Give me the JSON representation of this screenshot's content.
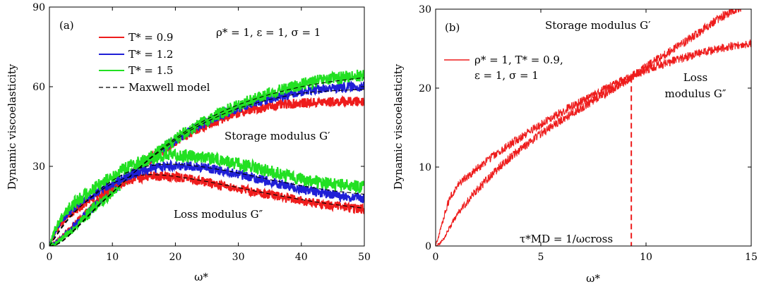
{
  "chart_data": [
    {
      "type": "line",
      "panel_label": "(a)",
      "xlabel": "ω*",
      "ylabel": "Dynamic viscoelasticity",
      "xlim": [
        0,
        50
      ],
      "ylim": [
        0,
        90
      ],
      "xticks": [
        0,
        10,
        20,
        30,
        40,
        50
      ],
      "yticks": [
        0,
        30,
        60,
        90
      ],
      "params_text": "ρ* = 1, ε = 1, σ = 1",
      "annotations": [
        "Storage modulus G′",
        "Loss modulus G″"
      ],
      "legend": {
        "position": "top-left",
        "entries": [
          {
            "label": "T* = 0.9",
            "color": "#ee1c1c",
            "style": "solid"
          },
          {
            "label": "T* = 1.2",
            "color": "#1f1fd6",
            "style": "solid"
          },
          {
            "label": "T* = 1.5",
            "color": "#22e022",
            "style": "solid"
          },
          {
            "label": "Maxwell model",
            "color": "#000000",
            "style": "dashed"
          }
        ]
      },
      "x": [
        0,
        1,
        2,
        3,
        4,
        5,
        6,
        8,
        10,
        12,
        14,
        16,
        18,
        20,
        22,
        25,
        28,
        30,
        32,
        35,
        38,
        40,
        42,
        45,
        48,
        50
      ],
      "series": [
        {
          "name": "T* = 0.9",
          "modulus": "storage",
          "color": "#ee1c1c",
          "noise": 0.6,
          "values": [
            0,
            1.3,
            3.5,
            5.8,
            8.4,
            10.5,
            12.8,
            17,
            21,
            25.2,
            29,
            32.8,
            36,
            39.2,
            41.9,
            45.5,
            48.5,
            50.1,
            51.3,
            52.6,
            53.5,
            53.8,
            54,
            54.3,
            54.4,
            54.5
          ]
        },
        {
          "name": "T* = 1.2",
          "modulus": "storage",
          "color": "#1f1fd6",
          "noise": 0.6,
          "values": [
            0,
            1,
            3,
            5.3,
            7.8,
            10,
            12.4,
            16.8,
            20.8,
            25,
            29,
            33,
            36.5,
            39.8,
            42.9,
            46.7,
            50,
            51.9,
            53.5,
            55.5,
            57.2,
            58.2,
            58.8,
            59.5,
            59.9,
            60.2
          ]
        },
        {
          "name": "T* = 1.5",
          "modulus": "storage",
          "color": "#22e022",
          "noise": 0.8,
          "values": [
            0,
            0.9,
            2.6,
            4.7,
            7.1,
            9.4,
            11.8,
            16.4,
            20.6,
            24.9,
            29.1,
            33.2,
            36.8,
            40.2,
            43.4,
            47.4,
            50.9,
            53.1,
            54.9,
            57.3,
            59.5,
            60.8,
            61.9,
            63,
            63.9,
            64.3
          ]
        },
        {
          "name": "T* = 0.9",
          "modulus": "loss",
          "color": "#ee1c1c",
          "noise": 0.6,
          "values": [
            0,
            5.5,
            9,
            11.2,
            13.2,
            15,
            16.6,
            19.6,
            22.2,
            24.3,
            25.6,
            26.2,
            26.3,
            26,
            25.4,
            24,
            22.6,
            21.6,
            20.6,
            19.3,
            17.9,
            17,
            16.2,
            15.3,
            14.4,
            13.8
          ]
        },
        {
          "name": "T* = 1.2",
          "modulus": "loss",
          "color": "#1f1fd6",
          "noise": 0.6,
          "values": [
            0,
            6,
            10,
            12.5,
            14.6,
            16.4,
            18,
            21,
            23.6,
            26,
            27.9,
            29.2,
            30,
            30.3,
            30.2,
            29.4,
            28.1,
            27,
            25.9,
            24.3,
            22.6,
            21.4,
            20.5,
            19.3,
            18.3,
            17.6
          ]
        },
        {
          "name": "T* = 1.5",
          "modulus": "loss",
          "color": "#22e022",
          "noise": 0.8,
          "values": [
            0,
            6.8,
            11.2,
            14,
            16.3,
            18.3,
            20,
            23.4,
            26.4,
            29.2,
            31.5,
            33,
            33.9,
            34.2,
            34,
            33.2,
            31.9,
            30.9,
            29.8,
            28.1,
            26.3,
            25.1,
            24.3,
            23.3,
            22.6,
            22.1
          ]
        }
      ],
      "maxwell_model": [
        {
          "modulus": "storage",
          "values": [
            0,
            0.4,
            1.8,
            3.9,
            6.3,
            8.6,
            11.1,
            15.9,
            20.2,
            24.6,
            28.8,
            32.9,
            36.5,
            39.9,
            43.1,
            46.9,
            50.1,
            51.9,
            53.3,
            55.2,
            56.7,
            57.5,
            58,
            58.5,
            58.8,
            59
          ]
        },
        {
          "modulus": "storage",
          "values": [
            0,
            0.3,
            1.6,
            3.6,
            6,
            8.3,
            10.8,
            15.6,
            20,
            24.5,
            28.9,
            33.2,
            37,
            40.5,
            43.8,
            47.8,
            51.2,
            53.2,
            54.9,
            57.1,
            58.9,
            60,
            60.9,
            62,
            62.9,
            63.4
          ]
        },
        {
          "modulus": "loss",
          "values": [
            0,
            3.8,
            7.4,
            10.4,
            12.9,
            15,
            17,
            20.8,
            23.6,
            25.6,
            26.6,
            26.9,
            26.7,
            26.2,
            25.5,
            24.3,
            22.9,
            22,
            21,
            19.6,
            18.3,
            17.5,
            16.7,
            15.7,
            14.8,
            14.2
          ]
        },
        {
          "modulus": "loss",
          "values": [
            0,
            3.4,
            6.9,
            10,
            12.7,
            15,
            17.2,
            21.4,
            24.7,
            27.4,
            29.2,
            30.3,
            30.7,
            30.8,
            30.5,
            29.6,
            28.4,
            27.5,
            26.5,
            25,
            23.6,
            22.7,
            21.9,
            20.8,
            20,
            19.5
          ]
        }
      ]
    },
    {
      "type": "line",
      "panel_label": "(b)",
      "xlabel": "ω*",
      "ylabel": "Dynamic viscoelasticity",
      "xlim": [
        0,
        15
      ],
      "ylim": [
        0,
        30
      ],
      "xticks": [
        0,
        5,
        10,
        15
      ],
      "yticks": [
        0,
        10,
        20,
        30
      ],
      "annotations": [
        "Storage modulus G′",
        "Loss modulus G″",
        "τ*MD = 1/ωcross"
      ],
      "legend": {
        "position": "top-left",
        "entries": [
          {
            "label_line1": "ρ* = 1, T* = 0.9,",
            "label_line2": "ε = 1, σ = 1",
            "color": "#ee1c1c",
            "style": "solid"
          }
        ]
      },
      "crossover_x": 9.3,
      "x": [
        0,
        0.2,
        0.4,
        0.6,
        0.8,
        1,
        1.5,
        2,
        2.5,
        3,
        3.5,
        4,
        4.5,
        5,
        5.5,
        6,
        6.5,
        7,
        7.5,
        8,
        8.5,
        9,
        9.3,
        9.5,
        10,
        10.5,
        11,
        11.5,
        12,
        12.5,
        13,
        13.5,
        14,
        14.5,
        15
      ],
      "series": [
        {
          "name": "Storage modulus G′",
          "color": "#ee1c1c",
          "noise": 0.55,
          "values": [
            0,
            0.3,
            1,
            2,
            3,
            3.9,
            5.6,
            7.2,
            8.6,
            9.9,
            11.1,
            12.2,
            13.2,
            14.2,
            15.1,
            16,
            16.8,
            17.6,
            18.4,
            19.2,
            20,
            20.8,
            21.4,
            21.8,
            22.7,
            23.6,
            24.4,
            25.3,
            26.1,
            27,
            28,
            28.9,
            29.6,
            30.2,
            30.6
          ]
        },
        {
          "name": "Loss modulus G″",
          "color": "#ee1c1c",
          "noise": 0.55,
          "values": [
            0,
            1.8,
            3.8,
            5.5,
            6.6,
            7.5,
            8.8,
            9.9,
            10.9,
            11.9,
            12.8,
            13.7,
            14.6,
            15.4,
            16.2,
            17,
            17.7,
            18.4,
            19.1,
            19.8,
            20.5,
            21.1,
            21.4,
            21.8,
            22.3,
            22.8,
            23.2,
            23.6,
            24,
            24.4,
            24.7,
            25,
            25.3,
            25.5,
            25.7
          ]
        }
      ]
    }
  ]
}
